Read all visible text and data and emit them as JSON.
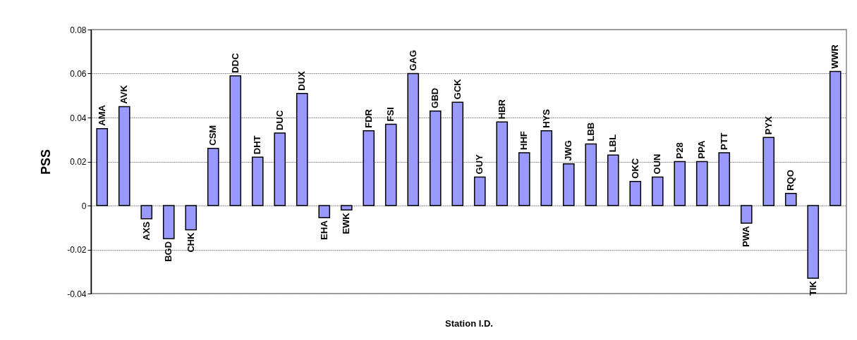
{
  "chart_data": {
    "type": "bar",
    "xlabel": "Station I.D.",
    "ylabel": "PSS",
    "categories": [
      "AMA",
      "AVK",
      "AXS",
      "BGD",
      "CHK",
      "CSM",
      "DDC",
      "DHT",
      "DUC",
      "DUX",
      "EHA",
      "EWK",
      "FDR",
      "FSI",
      "GAG",
      "GBD",
      "GCK",
      "GUY",
      "HBR",
      "HHF",
      "HYS",
      "JWG",
      "LBB",
      "LBL",
      "OKC",
      "OUN",
      "P28",
      "PPA",
      "PTT",
      "PWA",
      "PYX",
      "RQO",
      "TIK",
      "WWR"
    ],
    "values": [
      0.035,
      0.045,
      -0.006,
      -0.015,
      -0.011,
      0.026,
      0.059,
      0.022,
      0.033,
      0.051,
      -0.0055,
      -0.002,
      0.034,
      0.037,
      0.06,
      0.043,
      0.047,
      0.013,
      0.038,
      0.024,
      0.034,
      0.019,
      0.028,
      0.023,
      0.011,
      0.013,
      0.02,
      0.02,
      0.024,
      -0.008,
      0.031,
      0.0055,
      -0.033,
      0.061
    ],
    "color": "#9999ff",
    "ylim": [
      -0.04,
      0.08
    ],
    "yticks": [
      -0.04,
      -0.02,
      0,
      0.02,
      0.04,
      0.06,
      0.08
    ],
    "grid": "y"
  }
}
